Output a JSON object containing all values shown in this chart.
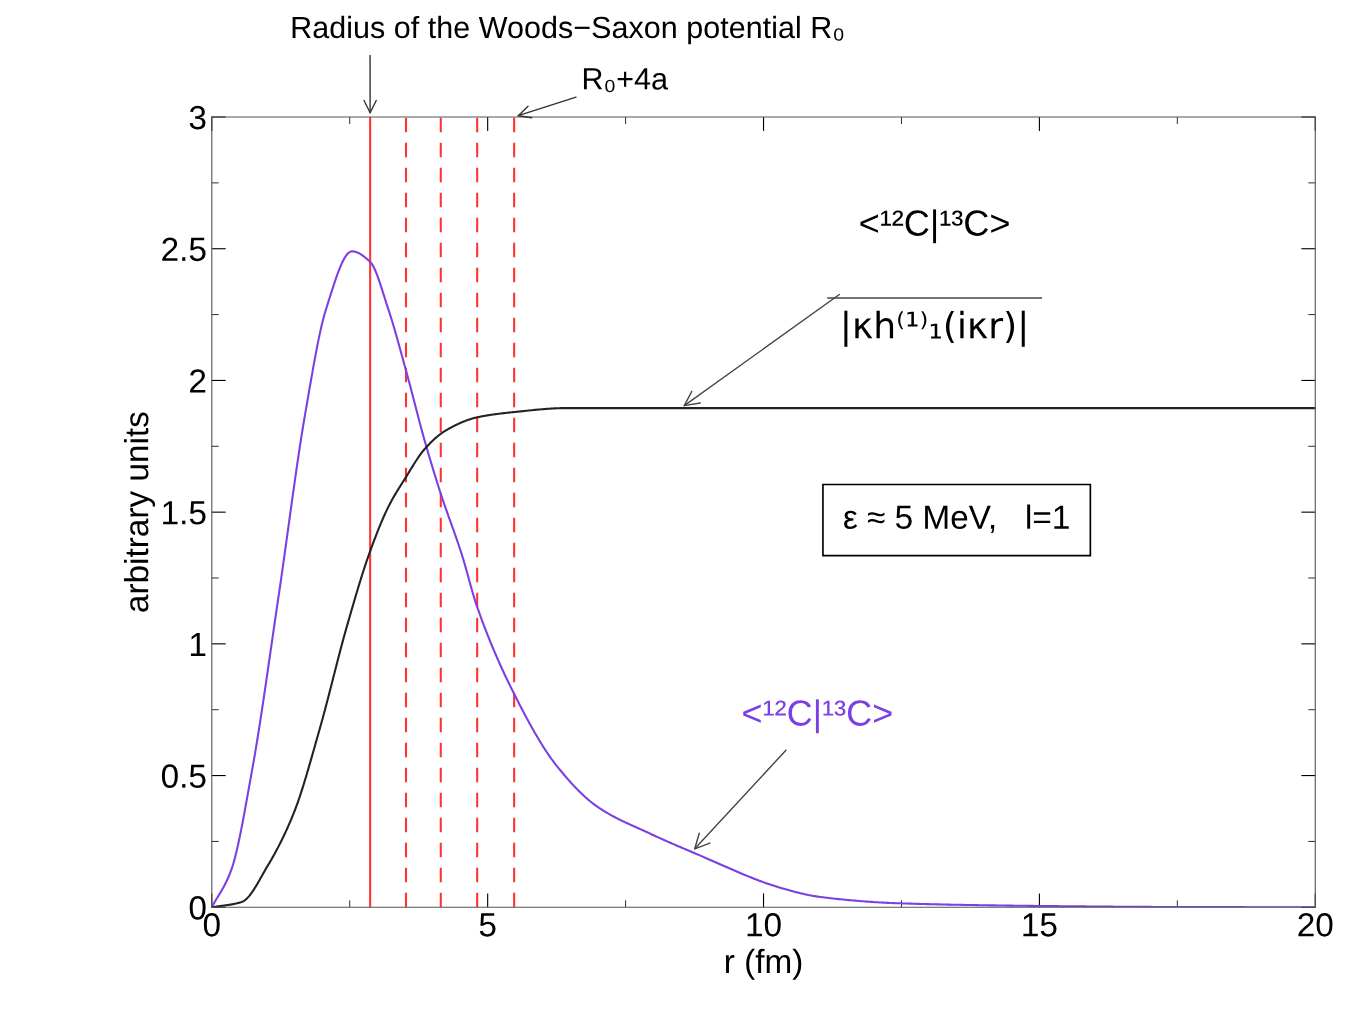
{
  "chart_data": {
    "type": "line",
    "xlabel": "r (fm)",
    "ylabel": "arbitrary units",
    "xlim": [
      0,
      20
    ],
    "ylim": [
      0,
      3
    ],
    "xticks": [
      0,
      5,
      10,
      15,
      20
    ],
    "yticks": [
      0,
      0.5,
      1,
      1.5,
      2,
      2.5,
      3
    ],
    "grid": false,
    "legend": false,
    "marker": "none",
    "line_style": "solid",
    "series": [
      {
        "name": "<¹²C|¹³C>",
        "color": "#7b3fe4",
        "x": [
          0,
          0.35,
          0.73,
          1.21,
          1.69,
          2.07,
          2.54,
          2.87,
          3.2,
          3.53,
          3.86,
          4.15,
          4.53,
          4.81,
          5.48,
          6.24,
          7.0,
          7.94,
          8.7,
          10.37,
          11,
          12.47,
          15,
          17.5,
          20
        ],
        "values": [
          0,
          0.14,
          0.52,
          1.18,
          1.87,
          2.27,
          2.49,
          2.45,
          2.27,
          2.03,
          1.77,
          1.57,
          1.34,
          1.14,
          0.81,
          0.54,
          0.38,
          0.28,
          0.21,
          0.07,
          0.04,
          0.015,
          0.005,
          0.001,
          0
        ]
      },
      {
        "name": "<¹²C|¹³C>\n|κh⁽¹⁾₁(iκr)|",
        "color": "#222222",
        "x": [
          0,
          0.54,
          1.02,
          1.49,
          1.96,
          2.44,
          2.85,
          3.2,
          3.51,
          3.86,
          4.24,
          4.81,
          5.48,
          6.42,
          7.9,
          10,
          15,
          20
        ],
        "values": [
          0,
          0.02,
          0.16,
          0.36,
          0.68,
          1.06,
          1.34,
          1.52,
          1.63,
          1.74,
          1.81,
          1.86,
          1.88,
          1.895,
          1.895,
          1.895,
          1.895,
          1.895
        ]
      }
    ],
    "ref_lines": [
      {
        "axis": "x",
        "value": 2.87,
        "color": "#ff3333",
        "line_style": "solid"
      },
      {
        "axis": "x",
        "value": 3.52,
        "color": "#ff3333",
        "line_style": "dashed"
      },
      {
        "axis": "x",
        "value": 4.15,
        "color": "#ff3333",
        "line_style": "dashed"
      },
      {
        "axis": "x",
        "value": 4.81,
        "color": "#ff3333",
        "line_style": "dashed"
      },
      {
        "axis": "x",
        "value": 5.48,
        "color": "#ff3333",
        "line_style": "dashed"
      }
    ],
    "annotations": [
      {
        "text": "Radius of the Woods−Saxon potential R₀",
        "x": 2.87,
        "y": 3
      },
      {
        "text": "R₀+4a",
        "x": 5.48,
        "y": 3
      },
      "ε ≈ 5 MeV,   l=1"
    ]
  }
}
